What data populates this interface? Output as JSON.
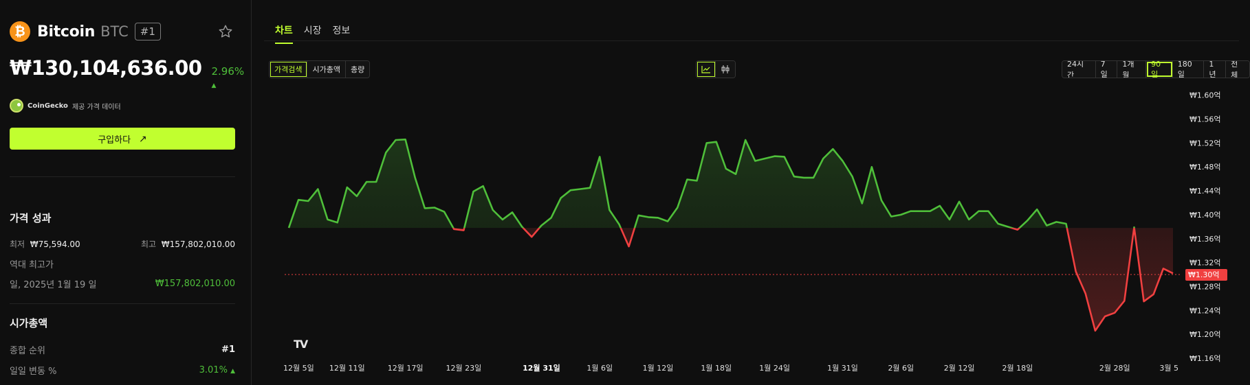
{
  "coin": {
    "logo_symbol": "₿",
    "name": "Bitcoin",
    "symbol": "BTC",
    "rank_badge": "#1",
    "price": "₩130,104,636.00",
    "change": "2.96%",
    "change_arrow": "▲"
  },
  "provider": {
    "name": "CoinGecko",
    "text": "제공 가격 데이터"
  },
  "buy_button": {
    "label": "구입하다",
    "arrow": "↗"
  },
  "price_performance": {
    "title": "가격 성과",
    "low_label": "최저",
    "low_value": "₩75,594.00",
    "high_label": "최고",
    "high_value": "₩157,802,010.00",
    "ath_label": "역대 최고가",
    "ath_date": "일, 2025년 1월 19 일",
    "ath_value": "₩157,802,010.00"
  },
  "market_cap": {
    "title": "시가총액",
    "rank_label": "종합 순위",
    "rank_value": "#1",
    "daily_label": "일일 변동 %",
    "daily_value": "3.01%",
    "daily_arrow": "▲"
  },
  "tabs": [
    {
      "label": "차트",
      "active": true
    },
    {
      "label": "시장",
      "active": false
    },
    {
      "label": "정보",
      "active": false
    }
  ],
  "metric_buttons": [
    "가격검색",
    "시가총액",
    "총량"
  ],
  "chart_type_icons": [
    "line-chart-icon",
    "candlestick-icon"
  ],
  "range_buttons": [
    "24시간",
    "7일",
    "1개월",
    "90일",
    "180일",
    "1년",
    "전체"
  ],
  "selected_range": "90일",
  "watermark": "TV",
  "colors": {
    "accent": "#c1ff2f",
    "up": "#4fbf3a",
    "down": "#f04040",
    "bg": "#0f0f0f"
  },
  "chart_data": {
    "type": "line",
    "unit": "억 원",
    "x_ticks": [
      "12월 5일",
      "12월 11일",
      "12월 17일",
      "12월 23일",
      "12월 31일",
      "1월 6일",
      "1월 12일",
      "1월 18일",
      "1월 24일",
      "1월 31일",
      "2월 6일",
      "2월 12일",
      "2월 18일",
      "2월 28일",
      "3월 5"
    ],
    "y_ticks": [
      "₩1.60억",
      "₩1.56억",
      "₩1.52억",
      "₩1.48억",
      "₩1.44억",
      "₩1.40억",
      "₩1.36억",
      "₩1.32억",
      "₩1.28억",
      "₩1.24억",
      "₩1.20억",
      "₩1.16억"
    ],
    "ylim": [
      1.16,
      1.61
    ],
    "baseline": 1.378,
    "current_price": 1.3,
    "current_label": "₩1.30억",
    "values": [
      1.378,
      1.425,
      1.423,
      1.443,
      1.392,
      1.387,
      1.446,
      1.431,
      1.455,
      1.455,
      1.504,
      1.525,
      1.526,
      1.462,
      1.411,
      1.412,
      1.405,
      1.376,
      1.374,
      1.439,
      1.448,
      1.408,
      1.392,
      1.404,
      1.38,
      1.363,
      1.382,
      1.395,
      1.428,
      1.441,
      1.443,
      1.445,
      1.497,
      1.408,
      1.384,
      1.347,
      1.399,
      1.396,
      1.395,
      1.389,
      1.412,
      1.459,
      1.457,
      1.52,
      1.522,
      1.477,
      1.468,
      1.525,
      1.49,
      1.494,
      1.498,
      1.497,
      1.464,
      1.462,
      1.462,
      1.494,
      1.51,
      1.49,
      1.464,
      1.419,
      1.48,
      1.424,
      1.397,
      1.4,
      1.406,
      1.406,
      1.406,
      1.415,
      1.392,
      1.422,
      1.392,
      1.406,
      1.406,
      1.385,
      1.38,
      1.375,
      1.39,
      1.409,
      1.382,
      1.388,
      1.385,
      1.305,
      1.268,
      1.206,
      1.23,
      1.236,
      1.256,
      1.379,
      1.255,
      1.267,
      1.31,
      1.302
    ]
  }
}
